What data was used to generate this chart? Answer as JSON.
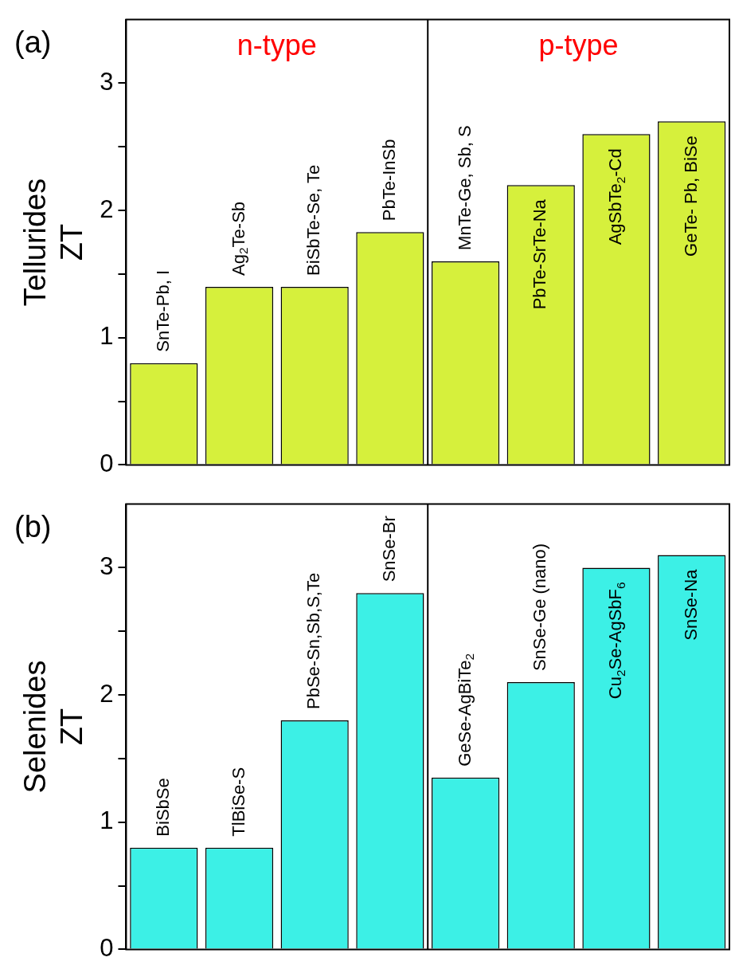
{
  "chart_data": [
    {
      "type": "bar",
      "ylabel": "Tellurides\nZT",
      "categories": [
        "SnTe-Pb, I",
        "Ag$_{2}$Te-Sb",
        "BiSbTe-Se, Te",
        "PbTe-InSb",
        "MnTe-Ge, Sb, S",
        "PbTe-SrTe-Na",
        "AgSbTe$_{2}$-Cd",
        "GeTe- Pb, BiSe"
      ],
      "values": [
        0.8,
        1.4,
        1.4,
        1.83,
        1.6,
        2.2,
        2.6,
        2.7
      ],
      "color": "#d6f03c",
      "ylim": [
        0,
        3.5
      ],
      "yticks": [
        0,
        {
          "value": 0.5,
          "label": null
        },
        1,
        {
          "value": 1.5,
          "label": null
        },
        2,
        {
          "value": 2.5,
          "label": null
        },
        3
      ],
      "tick_labels": "y",
      "annotations": [
        "(a)",
        "n-type",
        "p-type"
      ]
    },
    {
      "type": "bar",
      "ylabel": "Selenides\nZT",
      "categories": [
        "BiSbSe",
        "TlBiSe-S",
        "PbSe-Sn,Sb,S,Te",
        "SnSe-Br",
        "GeSe-AgBiTe$_{2}$",
        "SnSe-Ge (nano)",
        "Cu$_{2}$Se-AgSbF$_{6}$",
        "SnSe-Na"
      ],
      "values": [
        0.8,
        0.8,
        1.8,
        2.8,
        1.35,
        2.1,
        3.0,
        3.1
      ],
      "color": "#3cf0e6",
      "ylim": [
        0,
        3.5
      ],
      "yticks": [
        0,
        {
          "value": 0.5,
          "label": null
        },
        1,
        {
          "value": 1.5,
          "label": null
        },
        2,
        {
          "value": 2.5,
          "label": null
        },
        3
      ],
      "tick_labels": "y",
      "annotations": [
        "(b)"
      ]
    }
  ]
}
